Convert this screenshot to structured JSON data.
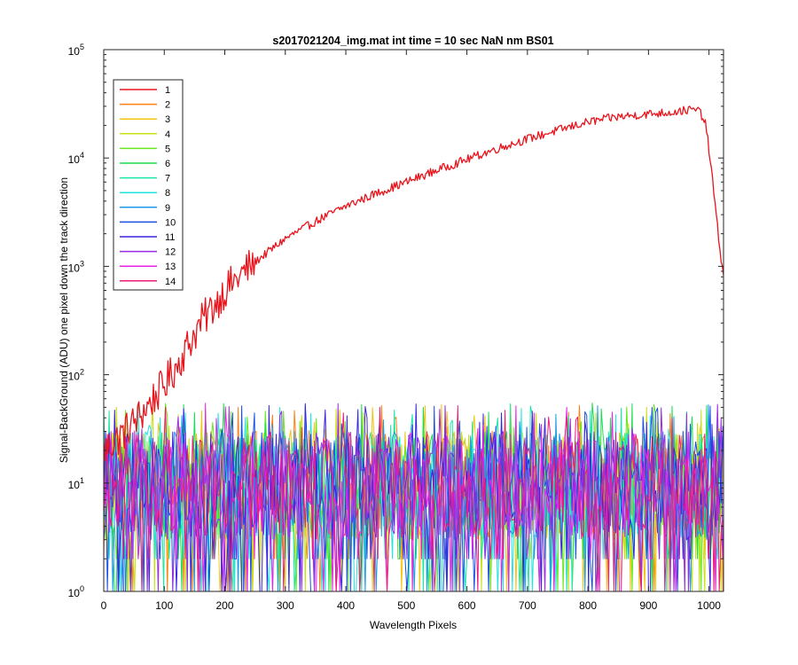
{
  "chart_data": {
    "type": "line",
    "title": "s2017021204_img.mat int time = 10 sec  NaN nm BS01",
    "xlabel": "Wavelength Pixels",
    "ylabel": "Signal-BackGround (ADU) one pixel down the track direction",
    "xlim": [
      0,
      1024
    ],
    "ylim": [
      1,
      100000
    ],
    "yscale": "log",
    "grid": false,
    "legend_position": "top-left",
    "x_ticks": [
      {
        "value": 0,
        "label": "0"
      },
      {
        "value": 100,
        "label": "100"
      },
      {
        "value": 200,
        "label": "200"
      },
      {
        "value": 300,
        "label": "300"
      },
      {
        "value": 400,
        "label": "400"
      },
      {
        "value": 500,
        "label": "500"
      },
      {
        "value": 600,
        "label": "600"
      },
      {
        "value": 700,
        "label": "700"
      },
      {
        "value": 800,
        "label": "800"
      },
      {
        "value": 900,
        "label": "900"
      },
      {
        "value": 1000,
        "label": "1000"
      }
    ],
    "y_ticks": [
      {
        "value": 1,
        "base": "10",
        "exp": "0"
      },
      {
        "value": 10,
        "base": "10",
        "exp": "1"
      },
      {
        "value": 100,
        "base": "10",
        "exp": "2"
      },
      {
        "value": 1000,
        "base": "10",
        "exp": "3"
      },
      {
        "value": 10000,
        "base": "10",
        "exp": "4"
      },
      {
        "value": 100000,
        "base": "10",
        "exp": "5"
      }
    ],
    "series": [
      {
        "name": "1",
        "color": "#e8141c",
        "x": [
          0,
          20,
          40,
          60,
          80,
          100,
          120,
          140,
          160,
          180,
          200,
          250,
          300,
          350,
          400,
          450,
          500,
          550,
          600,
          650,
          700,
          750,
          800,
          850,
          900,
          940,
          960,
          975,
          985,
          995,
          1005,
          1015,
          1024
        ],
        "y": [
          20,
          25,
          32,
          42,
          58,
          80,
          120,
          190,
          300,
          420,
          600,
          1100,
          1800,
          2600,
          3600,
          4700,
          6000,
          7700,
          9700,
          12200,
          15000,
          18000,
          21500,
          24000,
          25500,
          26500,
          27500,
          28000,
          27000,
          20000,
          7000,
          2000,
          800
        ],
        "noise": "high"
      },
      {
        "name": "2",
        "color": "#ff7f11",
        "noise": "low"
      },
      {
        "name": "3",
        "color": "#f2c40c",
        "noise": "low"
      },
      {
        "name": "4",
        "color": "#c8e012",
        "noise": "low"
      },
      {
        "name": "5",
        "color": "#66e81c",
        "noise": "low"
      },
      {
        "name": "6",
        "color": "#19de4f",
        "noise": "low"
      },
      {
        "name": "7",
        "color": "#17e8a8",
        "noise": "low"
      },
      {
        "name": "8",
        "color": "#1fe5e3",
        "noise": "low"
      },
      {
        "name": "9",
        "color": "#1a9ae8",
        "noise": "low"
      },
      {
        "name": "10",
        "color": "#1b4fe6",
        "noise": "low"
      },
      {
        "name": "11",
        "color": "#3a25e0",
        "noise": "low"
      },
      {
        "name": "12",
        "color": "#9a2ae6",
        "noise": "low"
      },
      {
        "name": "13",
        "color": "#e822e6",
        "noise": "low"
      },
      {
        "name": "14",
        "color": "#ea1c78",
        "noise": "low"
      }
    ],
    "noise_band": {
      "typical": [
        3,
        30
      ],
      "peak": 55,
      "floor": 1
    }
  }
}
